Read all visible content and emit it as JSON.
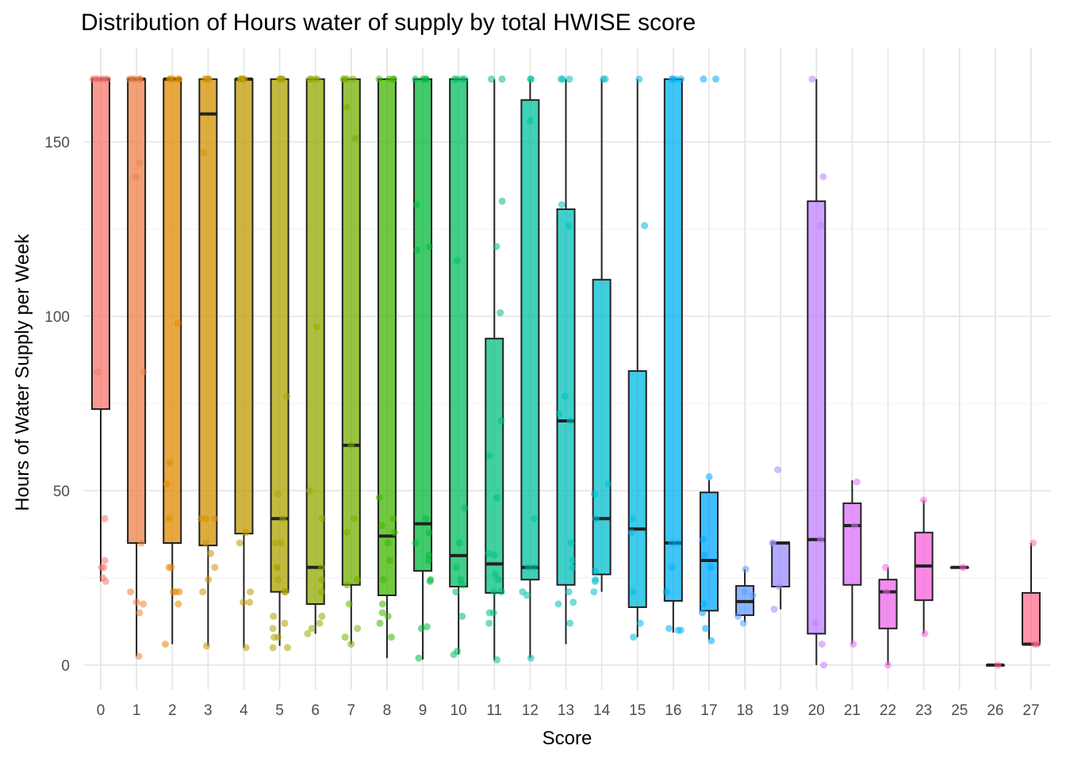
{
  "chart_data": {
    "type": "boxplot",
    "title": "Distribution of Hours water of supply by total HWISE score",
    "xlabel": "Score",
    "ylabel": "Hours of Water Supply per Week",
    "ylim": [
      -7,
      177
    ],
    "yticks": [
      0,
      50,
      100,
      150
    ],
    "grid": true,
    "legend": "none",
    "palette": {
      "type": "hcl-hue",
      "h_start": 15,
      "h_end": 375,
      "chroma": 100,
      "luminance": 65
    },
    "categories": [
      "0",
      "1",
      "2",
      "3",
      "4",
      "5",
      "6",
      "7",
      "8",
      "9",
      "10",
      "11",
      "12",
      "13",
      "14",
      "15",
      "16",
      "17",
      "18",
      "19",
      "20",
      "21",
      "22",
      "23",
      "25",
      "26",
      "27"
    ],
    "boxes": [
      {
        "low": 24,
        "q1": 73.4,
        "median": 168,
        "q3": 168,
        "high": 168
      },
      {
        "low": 2.5,
        "q1": 35,
        "median": 168,
        "q3": 168,
        "high": 168
      },
      {
        "low": 6,
        "q1": 35,
        "median": 168,
        "q3": 168,
        "high": 168
      },
      {
        "low": 5.5,
        "q1": 34.3,
        "median": 158,
        "q3": 168,
        "high": 168
      },
      {
        "low": 5,
        "q1": 37.7,
        "median": 168,
        "q3": 168,
        "high": 168
      },
      {
        "low": 5.5,
        "q1": 21,
        "median": 42,
        "q3": 168,
        "high": 168
      },
      {
        "low": 9,
        "q1": 17.5,
        "median": 28,
        "q3": 168,
        "high": 168
      },
      {
        "low": 6,
        "q1": 23,
        "median": 63,
        "q3": 168,
        "high": 168
      },
      {
        "low": 2,
        "q1": 20,
        "median": 37,
        "q3": 168,
        "high": 168
      },
      {
        "low": 1.6,
        "q1": 27,
        "median": 40.5,
        "q3": 168,
        "high": 168
      },
      {
        "low": 3,
        "q1": 22.5,
        "median": 31.4,
        "q3": 168,
        "high": 168
      },
      {
        "low": 1.4,
        "q1": 20.7,
        "median": 29,
        "q3": 93.6,
        "high": 168
      },
      {
        "low": 2,
        "q1": 24.5,
        "median": 28,
        "q3": 162,
        "high": 168
      },
      {
        "low": 6,
        "q1": 23,
        "median": 70,
        "q3": 130.7,
        "high": 168
      },
      {
        "low": 21,
        "q1": 26,
        "median": 42,
        "q3": 110.5,
        "high": 168
      },
      {
        "low": 8,
        "q1": 16.6,
        "median": 39,
        "q3": 84.3,
        "high": 168
      },
      {
        "low": 9.3,
        "q1": 18.4,
        "median": 35,
        "q3": 168,
        "high": 168
      },
      {
        "low": 7.3,
        "q1": 15.6,
        "median": 30,
        "q3": 49.5,
        "high": 53
      },
      {
        "low": 12.3,
        "q1": 14.3,
        "median": 18.2,
        "q3": 22.7,
        "high": 27.5
      },
      {
        "low": 16,
        "q1": 22.5,
        "median": 35,
        "q3": 35.2,
        "high": 35.2
      },
      {
        "low": 0,
        "q1": 9,
        "median": 36,
        "q3": 133,
        "high": 168
      },
      {
        "low": 6,
        "q1": 23,
        "median": 40,
        "q3": 46.4,
        "high": 53
      },
      {
        "low": 0,
        "q1": 10.5,
        "median": 21,
        "q3": 24.5,
        "high": 28
      },
      {
        "low": 9,
        "q1": 18.6,
        "median": 28.4,
        "q3": 38,
        "high": 47.3
      },
      {
        "low": 28,
        "q1": 28,
        "median": 28,
        "q3": 28,
        "high": 28
      },
      {
        "low": 0,
        "q1": 0,
        "median": 0,
        "q3": 0,
        "high": 0
      },
      {
        "low": 6,
        "q1": 6,
        "median": 6,
        "q3": 20.7,
        "high": 35
      }
    ],
    "points": [
      [
        168,
        168,
        168,
        168,
        168,
        168,
        84,
        42,
        30,
        28,
        28,
        25,
        24
      ],
      [
        168,
        168,
        168,
        168,
        168,
        144,
        140,
        84,
        35,
        21,
        18,
        17.5,
        15,
        2.5
      ],
      [
        168,
        168,
        168,
        168,
        168,
        98,
        58,
        52,
        42,
        28,
        28,
        21,
        21,
        21,
        17.5,
        6
      ],
      [
        168,
        168,
        168,
        168,
        147,
        42,
        42,
        42,
        35,
        32,
        28,
        24.5,
        21,
        5.5
      ],
      [
        168,
        168,
        168,
        168,
        168,
        38,
        35,
        21,
        18,
        18,
        5
      ],
      [
        168,
        168,
        168,
        168,
        77,
        49,
        42,
        35,
        35,
        28,
        28,
        24.5,
        21,
        21,
        14,
        12,
        10.5,
        8,
        8,
        5,
        5
      ],
      [
        168,
        168,
        168,
        168,
        97,
        50,
        42,
        28,
        24.5,
        21,
        14,
        12,
        10.5,
        9
      ],
      [
        168,
        168,
        168,
        168,
        160,
        151,
        63,
        42,
        38,
        24.5,
        23,
        17.5,
        10.5,
        8,
        6
      ],
      [
        168,
        168,
        168,
        168,
        48,
        42,
        40,
        38,
        35,
        30,
        24.5,
        17.5,
        15,
        14,
        12,
        8
      ],
      [
        168,
        168,
        168,
        168,
        132,
        120,
        119,
        42,
        38,
        35,
        31.5,
        30,
        24.5,
        24,
        11,
        10.5,
        2
      ],
      [
        168,
        168,
        168,
        168,
        116,
        45,
        35,
        28,
        24.5,
        23,
        21,
        14,
        4,
        3
      ],
      [
        168,
        168,
        133,
        120,
        101,
        70,
        60,
        48,
        32,
        31.5,
        26,
        24.5,
        21,
        21,
        15,
        15,
        12,
        1.5
      ],
      [
        168,
        168,
        156,
        42,
        28,
        28,
        21,
        20,
        2
      ],
      [
        168,
        168,
        168,
        132,
        126,
        77,
        72,
        70,
        35,
        30,
        28,
        21,
        18,
        17.5,
        12
      ],
      [
        168,
        168,
        52,
        49,
        42,
        27,
        24.5,
        24,
        21
      ],
      [
        168,
        126,
        42,
        38,
        21,
        12,
        8
      ],
      [
        168,
        168,
        168,
        168,
        35,
        35,
        28,
        21,
        10.5,
        10,
        10
      ],
      [
        168,
        168,
        54,
        36,
        31.5,
        28,
        17.5,
        15,
        10.5,
        7
      ],
      [
        27.5,
        21,
        20,
        14,
        12
      ],
      [
        56,
        35,
        35,
        22.5,
        16
      ],
      [
        168,
        140,
        126,
        36,
        12,
        6,
        0
      ],
      [
        52.5,
        40,
        6
      ],
      [
        28,
        21,
        0
      ],
      [
        47.3,
        9
      ],
      [
        28
      ],
      [
        0
      ],
      [
        35,
        6,
        6
      ]
    ]
  }
}
